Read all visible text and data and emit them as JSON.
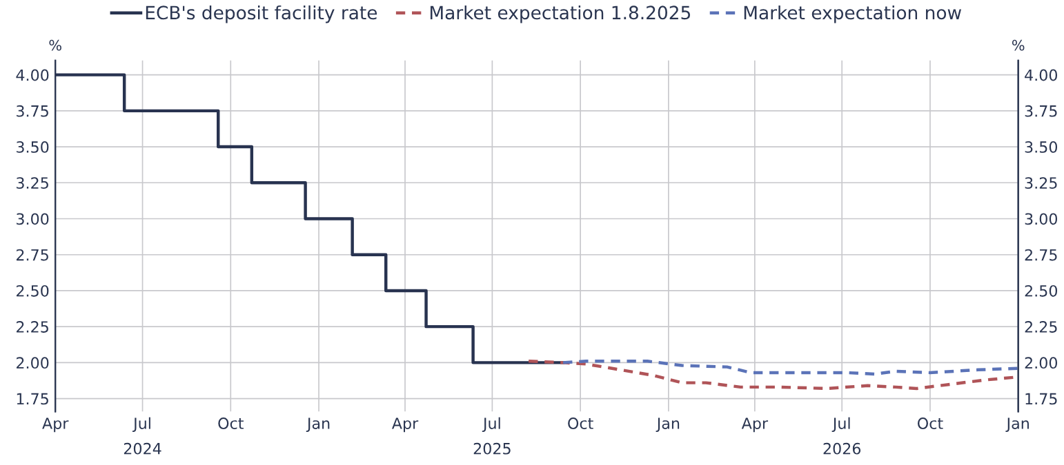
{
  "chart_data": {
    "type": "line",
    "ylabel": "%",
    "y2label": "%",
    "xlim": [
      "2024-04-01",
      "2027-01-01"
    ],
    "xticks": [
      {
        "value": "2024-04-01",
        "label": "Apr"
      },
      {
        "value": "2024-07-01",
        "label": "Jul\n2024"
      },
      {
        "value": "2024-10-01",
        "label": "Oct"
      },
      {
        "value": "2025-01-01",
        "label": "Jan"
      },
      {
        "value": "2025-04-01",
        "label": "Apr"
      },
      {
        "value": "2025-07-01",
        "label": "Jul\n2025"
      },
      {
        "value": "2025-10-01",
        "label": "Oct"
      },
      {
        "value": "2026-01-01",
        "label": "Jan"
      },
      {
        "value": "2026-04-01",
        "label": "Apr"
      },
      {
        "value": "2026-07-01",
        "label": "Jul\n2026"
      },
      {
        "value": "2026-10-01",
        "label": "Oct"
      },
      {
        "value": "2027-01-01",
        "label": "Jan"
      }
    ],
    "ylim": [
      1.66,
      4.1
    ],
    "yticks": [
      {
        "value": 1.75,
        "label": "1.75"
      },
      {
        "value": 2.0,
        "label": "2.00"
      },
      {
        "value": 2.25,
        "label": "2.25"
      },
      {
        "value": 2.5,
        "label": "2.50"
      },
      {
        "value": 2.75,
        "label": "2.75"
      },
      {
        "value": 3.0,
        "label": "3.00"
      },
      {
        "value": 3.25,
        "label": "3.25"
      },
      {
        "value": 3.5,
        "label": "3.50"
      },
      {
        "value": 3.75,
        "label": "3.75"
      },
      {
        "value": 4.0,
        "label": "4.00"
      }
    ],
    "y2lim": [
      1.66,
      4.1
    ],
    "y2ticks": [
      {
        "value": 1.75,
        "label": "1.75"
      },
      {
        "value": 2.0,
        "label": "2.00"
      },
      {
        "value": 2.25,
        "label": "2.25"
      },
      {
        "value": 2.5,
        "label": "2.50"
      },
      {
        "value": 2.75,
        "label": "2.75"
      },
      {
        "value": 3.0,
        "label": "3.00"
      },
      {
        "value": 3.25,
        "label": "3.25"
      },
      {
        "value": 3.5,
        "label": "3.50"
      },
      {
        "value": 3.75,
        "label": "3.75"
      },
      {
        "value": 4.0,
        "label": "4.00"
      }
    ],
    "grid": true,
    "legend": "top",
    "marker": "none",
    "series": [
      {
        "name": "ECB's deposit facility rate",
        "type": "step",
        "color": "#283350",
        "line_style": "solid",
        "x": [
          "2024-04-01",
          "2024-06-12",
          "2024-09-18",
          "2024-10-23",
          "2024-12-18",
          "2025-02-05",
          "2025-03-12",
          "2025-04-23",
          "2025-06-11",
          "2025-09-13"
        ],
        "values": [
          4.0,
          3.75,
          3.5,
          3.25,
          3.0,
          2.75,
          2.5,
          2.25,
          2.0,
          2.0
        ]
      },
      {
        "name": "Market expectation 1.8.2025",
        "color": "#b05458",
        "line_style": "dashed",
        "x": [
          "2025-08-08",
          "2025-09-13",
          "2025-10-07",
          "2025-11-12",
          "2025-12-17",
          "2026-01-15",
          "2026-02-09",
          "2026-03-17",
          "2026-04-26",
          "2026-06-15",
          "2026-07-28",
          "2026-08-26",
          "2026-09-17",
          "2026-10-23",
          "2026-11-28",
          "2027-01-01"
        ],
        "values": [
          2.01,
          2.0,
          1.99,
          1.95,
          1.91,
          1.86,
          1.86,
          1.83,
          1.83,
          1.82,
          1.84,
          1.83,
          1.82,
          1.85,
          1.88,
          1.9
        ]
      },
      {
        "name": "Market expectation now",
        "color": "#5b73b8",
        "line_style": "dashed",
        "x": [
          "2025-09-13",
          "2025-10-07",
          "2025-12-10",
          "2026-01-15",
          "2026-03-03",
          "2026-03-28",
          "2026-05-10",
          "2026-07-07",
          "2026-08-04",
          "2026-08-26",
          "2026-10-01",
          "2026-11-20",
          "2027-01-01"
        ],
        "values": [
          2.0,
          2.01,
          2.01,
          1.98,
          1.97,
          1.93,
          1.93,
          1.93,
          1.92,
          1.94,
          1.93,
          1.95,
          1.96
        ]
      }
    ]
  }
}
